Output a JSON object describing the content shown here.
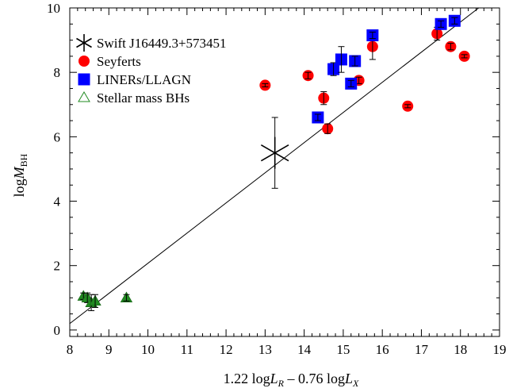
{
  "chart_data": {
    "type": "scatter",
    "xlabel": {
      "coef1": "1.22 log",
      "var1": "L",
      "sub1": "R",
      "mid": " – 0.76 log",
      "var2": "L",
      "sub2": "X"
    },
    "ylabel": {
      "prefix": "log",
      "var": "M",
      "sub": "BH"
    },
    "xlim": [
      8,
      19
    ],
    "ylim": [
      -0.2,
      10
    ],
    "xticks": [
      8,
      9,
      10,
      11,
      12,
      13,
      14,
      15,
      16,
      17,
      18,
      19
    ],
    "yticks": [
      0,
      2,
      4,
      6,
      8,
      10
    ],
    "grid": false,
    "legend_position": "top-left",
    "fit_line": {
      "x": [
        8,
        19
      ],
      "y": [
        0.2,
        10.5
      ]
    },
    "series": [
      {
        "name": "Swift  J16449.3+573451",
        "marker": "asterisk",
        "color": "#000000",
        "points": [
          {
            "x": 13.25,
            "y": 5.5,
            "yerr": 1.1
          }
        ]
      },
      {
        "name": "Seyferts",
        "marker": "circle",
        "color": "#ff0000",
        "points": [
          {
            "x": 13.0,
            "y": 7.6,
            "yerr": 0.05
          },
          {
            "x": 14.1,
            "y": 7.9,
            "yerr": 0.1
          },
          {
            "x": 14.5,
            "y": 7.2,
            "yerr": 0.2
          },
          {
            "x": 14.6,
            "y": 6.25,
            "yerr": 0.15
          },
          {
            "x": 15.4,
            "y": 7.75,
            "yerr": 0.1
          },
          {
            "x": 15.75,
            "y": 8.8,
            "yerr": 0.4
          },
          {
            "x": 16.65,
            "y": 6.95,
            "yerr": 0.05
          },
          {
            "x": 17.4,
            "y": 9.2,
            "yerr": 0.2
          },
          {
            "x": 17.75,
            "y": 8.8,
            "yerr": 0.1
          },
          {
            "x": 18.1,
            "y": 8.5,
            "yerr": 0.05
          }
        ]
      },
      {
        "name": "LINERs/LLAGN",
        "marker": "square",
        "color": "#0000ff",
        "points": [
          {
            "x": 14.35,
            "y": 6.6,
            "yerr": 0.1
          },
          {
            "x": 14.75,
            "y": 8.1,
            "yerr": 0.2
          },
          {
            "x": 14.95,
            "y": 8.4,
            "yerr": 0.4
          },
          {
            "x": 15.2,
            "y": 7.65,
            "yerr": 0.1
          },
          {
            "x": 15.3,
            "y": 8.35,
            "yerr": 0.15
          },
          {
            "x": 15.75,
            "y": 9.15,
            "yerr": 0.1
          },
          {
            "x": 17.5,
            "y": 9.5,
            "yerr": 0.1
          },
          {
            "x": 17.85,
            "y": 9.6,
            "yerr": 0.1
          }
        ]
      },
      {
        "name": "Stellar mass BHs",
        "marker": "triangle",
        "color": "#228b22",
        "points": [
          {
            "x": 8.35,
            "y": 1.05,
            "yerr": 0.1
          },
          {
            "x": 8.45,
            "y": 1.0,
            "yerr": 0.15
          },
          {
            "x": 8.55,
            "y": 0.85,
            "yerr": 0.25
          },
          {
            "x": 8.65,
            "y": 0.9,
            "yerr": 0.2
          },
          {
            "x": 9.45,
            "y": 1.0,
            "yerr": 0.1
          }
        ]
      }
    ]
  }
}
